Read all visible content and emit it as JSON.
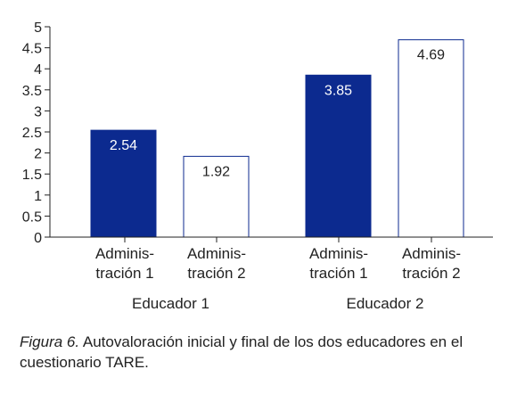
{
  "chart_data": {
    "type": "bar",
    "groups": [
      "Educador 1",
      "Educador 2"
    ],
    "categories": [
      [
        "Adminis-",
        "tración 1"
      ],
      [
        "Adminis-",
        "tración 2"
      ]
    ],
    "series": [
      {
        "values": [
          2.54,
          3.85
        ],
        "color": "#0c2a8f"
      },
      {
        "values": [
          1.92,
          4.69
        ],
        "color": "#ffffff",
        "stroke": "#0c2a8f"
      }
    ],
    "data_labels": [
      [
        "2.54",
        "1.92"
      ],
      [
        "3.85",
        "4.69"
      ]
    ],
    "yticks": [
      "0",
      "0.5",
      "1",
      "1.5",
      "2",
      "2.5",
      "3",
      "3.5",
      "4",
      "4.5",
      "5"
    ],
    "ylim": [
      0,
      5
    ],
    "grid": false,
    "legend": "none"
  },
  "caption": {
    "figure_label": "Figura 6.",
    "text": "Autovaloración inicial y final de los dos educadores en el cuestionario TARE."
  }
}
